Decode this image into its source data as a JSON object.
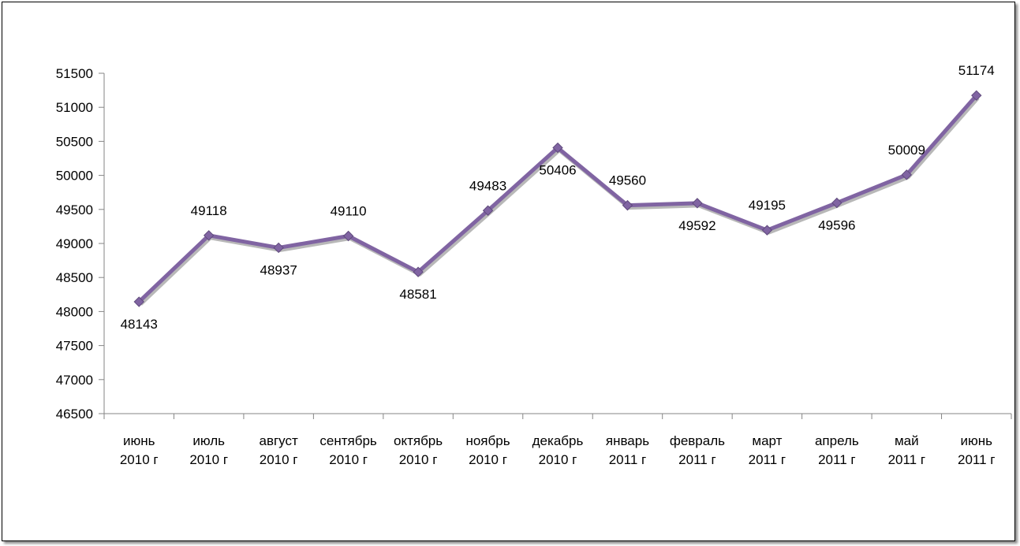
{
  "chart_data": {
    "type": "line",
    "categories": [
      [
        "июнь",
        "2010 г"
      ],
      [
        "июль",
        "2010 г"
      ],
      [
        "август",
        "2010 г"
      ],
      [
        "сентябрь",
        "2010 г"
      ],
      [
        "октябрь",
        "2010 г"
      ],
      [
        "ноябрь",
        "2010 г"
      ],
      [
        "декабрь",
        "2010 г"
      ],
      [
        "январь",
        "2011 г"
      ],
      [
        "февраль",
        "2011 г"
      ],
      [
        "март",
        "2011 г"
      ],
      [
        "апрель",
        "2011 г"
      ],
      [
        "май",
        "2011 г"
      ],
      [
        "июнь",
        "2011 г"
      ]
    ],
    "series": [
      {
        "values": [
          48143,
          49118,
          48937,
          49110,
          48581,
          49483,
          50406,
          49560,
          49592,
          49195,
          49596,
          50009,
          51174
        ],
        "data_labels": [
          "48143",
          "49118",
          "48937",
          "49110",
          "48581",
          "49483",
          "50406",
          "49560",
          "49592",
          "49195",
          "49596",
          "50009",
          "51174"
        ],
        "label_side": [
          "below",
          "above",
          "below",
          "above",
          "below",
          "above",
          "below",
          "above",
          "below",
          "above",
          "below",
          "above",
          "above"
        ],
        "color": "#8064a2",
        "marker": "diamond"
      }
    ],
    "ylim": [
      46500,
      51500
    ],
    "yticks": [
      46500,
      47000,
      47500,
      48000,
      48500,
      49000,
      49500,
      50000,
      50500,
      51000,
      51500
    ],
    "ytick_labels": [
      "46500",
      "47000",
      "47500",
      "48000",
      "48500",
      "49000",
      "49500",
      "50000",
      "50500",
      "51000",
      "51500"
    ],
    "title": "",
    "xlabel": "",
    "ylabel": "",
    "grid": false,
    "legend": "none",
    "colors": {
      "line": "#8064a2",
      "marker": "#8064a2",
      "axis": "#868686"
    }
  }
}
